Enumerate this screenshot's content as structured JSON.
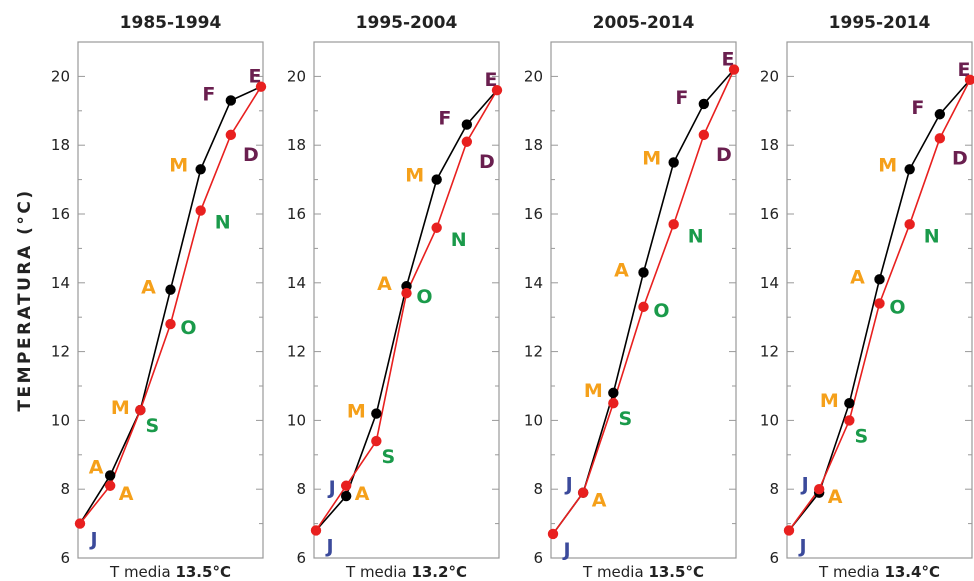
{
  "figure": {
    "ylabel": "TEMPERATURA (°C)",
    "mean_prefix": "T media",
    "colors": {
      "cold_month": "#3b4a9b",
      "spring_month": "#f5a01a",
      "autumn_month": "#1a9a4a",
      "summer_month": "#6a1f4f",
      "rising_line": "#000000",
      "falling_line": "#e8201f",
      "axis": "#999999"
    }
  },
  "chart_data": [
    {
      "type": "line",
      "title": "1985-1994",
      "mean": "13.5°C",
      "ylim": [
        6,
        21
      ],
      "yticks": [
        6,
        8,
        10,
        12,
        14,
        16,
        18,
        20
      ],
      "series": [
        {
          "color": "black",
          "months": [
            "J",
            "A",
            "M",
            "A",
            "M",
            "F",
            "E"
          ],
          "values": [
            7.0,
            8.4,
            10.3,
            13.8,
            17.3,
            19.3,
            19.7
          ]
        },
        {
          "color": "red",
          "months": [
            "J",
            "A",
            "S",
            "O",
            "N",
            "D",
            "E"
          ],
          "values": [
            7.0,
            8.1,
            10.3,
            12.8,
            16.1,
            18.3,
            19.7
          ]
        }
      ]
    },
    {
      "type": "line",
      "title": "1995-2004",
      "mean": "13.2°C",
      "ylim": [
        6,
        21
      ],
      "yticks": [
        6,
        8,
        10,
        12,
        14,
        16,
        18,
        20
      ],
      "series": [
        {
          "color": "black",
          "months": [
            "J",
            "J",
            "M",
            "A",
            "M",
            "F",
            "E"
          ],
          "values": [
            6.8,
            7.8,
            10.2,
            13.9,
            17.0,
            18.6,
            19.6
          ]
        },
        {
          "color": "red",
          "months": [
            "J",
            "A",
            "S",
            "O",
            "N",
            "D",
            "E"
          ],
          "values": [
            6.8,
            8.1,
            9.4,
            13.7,
            15.6,
            18.1,
            19.6
          ]
        }
      ]
    },
    {
      "type": "line",
      "title": "2005-2014",
      "mean": "13.5°C",
      "ylim": [
        6,
        21
      ],
      "yticks": [
        6,
        8,
        10,
        12,
        14,
        16,
        18,
        20
      ],
      "series": [
        {
          "color": "black",
          "months": [
            "J",
            "J",
            "M",
            "A",
            "M",
            "F",
            "E"
          ],
          "values": [
            6.7,
            7.9,
            10.8,
            14.3,
            17.5,
            19.2,
            20.2
          ]
        },
        {
          "color": "red",
          "months": [
            "J",
            "A",
            "S",
            "O",
            "N",
            "D",
            "E"
          ],
          "values": [
            6.7,
            7.9,
            10.5,
            13.3,
            15.7,
            18.3,
            20.2
          ]
        }
      ]
    },
    {
      "type": "line",
      "title": "1995-2014",
      "mean": "13.4°C",
      "ylim": [
        6,
        21
      ],
      "yticks": [
        6,
        8,
        10,
        12,
        14,
        16,
        18,
        20
      ],
      "series": [
        {
          "color": "black",
          "months": [
            "J",
            "J",
            "M",
            "A",
            "M",
            "F",
            "E"
          ],
          "values": [
            6.8,
            7.9,
            10.5,
            14.1,
            17.3,
            18.9,
            19.9
          ]
        },
        {
          "color": "red",
          "months": [
            "J",
            "A",
            "S",
            "O",
            "N",
            "D",
            "E"
          ],
          "values": [
            6.8,
            8.0,
            10.0,
            13.4,
            15.7,
            18.2,
            19.9
          ]
        }
      ]
    }
  ]
}
